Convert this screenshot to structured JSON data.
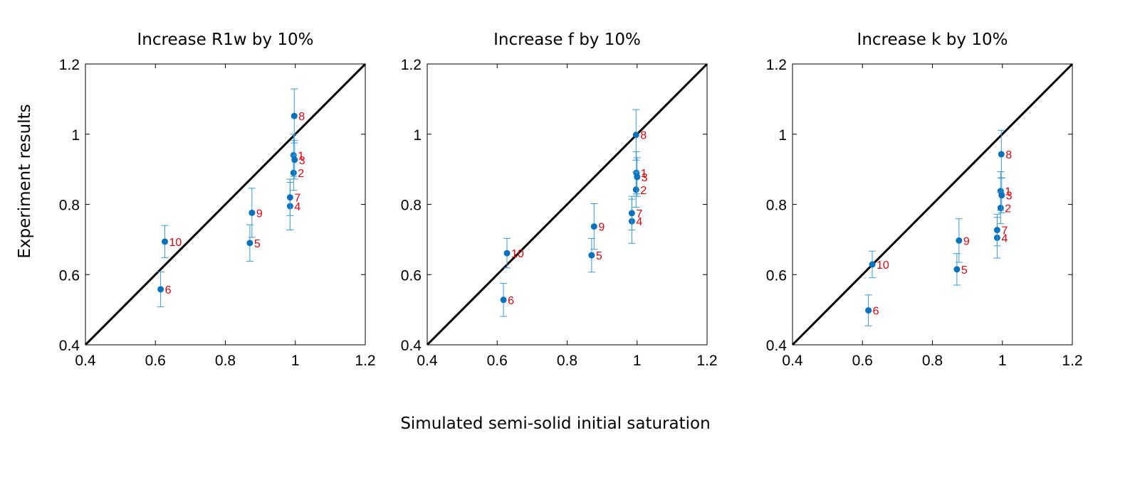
{
  "chart_data": [
    {
      "type": "scatter",
      "title": "Increase R1w by 10%",
      "xlim": [
        0.4,
        1.2
      ],
      "ylim": [
        0.4,
        1.2
      ],
      "xticks": [
        "0.4",
        "0.6",
        "0.8",
        "1",
        "1.2"
      ],
      "yticks": [
        "0.4",
        "0.6",
        "0.8",
        "1",
        "1.2"
      ],
      "identity_line": true,
      "points": [
        {
          "label": "1",
          "x": 0.995,
          "y": 0.94,
          "err": 0.06
        },
        {
          "label": "2",
          "x": 0.995,
          "y": 0.89,
          "err": 0.05
        },
        {
          "label": "3",
          "x": 0.998,
          "y": 0.927,
          "err": 0.055
        },
        {
          "label": "4",
          "x": 0.985,
          "y": 0.795,
          "err": 0.068
        },
        {
          "label": "5",
          "x": 0.87,
          "y": 0.69,
          "err": 0.052
        },
        {
          "label": "6",
          "x": 0.615,
          "y": 0.558,
          "err": 0.05
        },
        {
          "label": "7",
          "x": 0.985,
          "y": 0.82,
          "err": 0.052
        },
        {
          "label": "8",
          "x": 0.997,
          "y": 1.052,
          "err": 0.077
        },
        {
          "label": "9",
          "x": 0.876,
          "y": 0.776,
          "err": 0.07
        },
        {
          "label": "10",
          "x": 0.627,
          "y": 0.694,
          "err": 0.046
        }
      ]
    },
    {
      "type": "scatter",
      "title": "Increase f by 10%",
      "xlim": [
        0.4,
        1.2
      ],
      "ylim": [
        0.4,
        1.2
      ],
      "xticks": [
        "0.4",
        "0.6",
        "0.8",
        "1",
        "1.2"
      ],
      "yticks": [
        "0.4",
        "0.6",
        "0.8",
        "1",
        "1.2"
      ],
      "identity_line": true,
      "points": [
        {
          "label": "1",
          "x": 0.998,
          "y": 0.89,
          "err": 0.06
        },
        {
          "label": "2",
          "x": 0.997,
          "y": 0.842,
          "err": 0.05
        },
        {
          "label": "3",
          "x": 1.0,
          "y": 0.878,
          "err": 0.055
        },
        {
          "label": "4",
          "x": 0.985,
          "y": 0.752,
          "err": 0.063
        },
        {
          "label": "5",
          "x": 0.87,
          "y": 0.655,
          "err": 0.048
        },
        {
          "label": "6",
          "x": 0.618,
          "y": 0.528,
          "err": 0.047
        },
        {
          "label": "7",
          "x": 0.985,
          "y": 0.775,
          "err": 0.048
        },
        {
          "label": "8",
          "x": 0.997,
          "y": 0.998,
          "err": 0.072
        },
        {
          "label": "9",
          "x": 0.877,
          "y": 0.737,
          "err": 0.065
        },
        {
          "label": "10",
          "x": 0.628,
          "y": 0.661,
          "err": 0.042
        }
      ]
    },
    {
      "type": "scatter",
      "title": "Increase k by 10%",
      "xlim": [
        0.4,
        1.2
      ],
      "ylim": [
        0.4,
        1.2
      ],
      "xticks": [
        "0.4",
        "0.6",
        "0.8",
        "1",
        "1.2"
      ],
      "yticks": [
        "0.4",
        "0.6",
        "0.8",
        "1",
        "1.2"
      ],
      "identity_line": true,
      "points": [
        {
          "label": "1",
          "x": 0.995,
          "y": 0.838,
          "err": 0.055
        },
        {
          "label": "2",
          "x": 0.995,
          "y": 0.79,
          "err": 0.045
        },
        {
          "label": "3",
          "x": 0.998,
          "y": 0.826,
          "err": 0.05
        },
        {
          "label": "4",
          "x": 0.985,
          "y": 0.705,
          "err": 0.058
        },
        {
          "label": "5",
          "x": 0.87,
          "y": 0.615,
          "err": 0.045
        },
        {
          "label": "6",
          "x": 0.617,
          "y": 0.498,
          "err": 0.044
        },
        {
          "label": "7",
          "x": 0.985,
          "y": 0.727,
          "err": 0.045
        },
        {
          "label": "8",
          "x": 0.997,
          "y": 0.943,
          "err": 0.068
        },
        {
          "label": "9",
          "x": 0.876,
          "y": 0.697,
          "err": 0.062
        },
        {
          "label": "10",
          "x": 0.628,
          "y": 0.629,
          "err": 0.038
        }
      ]
    }
  ],
  "xlabel": "Simulated semi-solid initial saturation",
  "ylabel": "Experiment results",
  "colors": {
    "marker": "#0a72bd",
    "errorbar": "#3a9ad9",
    "point_label": "#e8000b",
    "identity_line": "#000000",
    "axes": "#000000"
  }
}
